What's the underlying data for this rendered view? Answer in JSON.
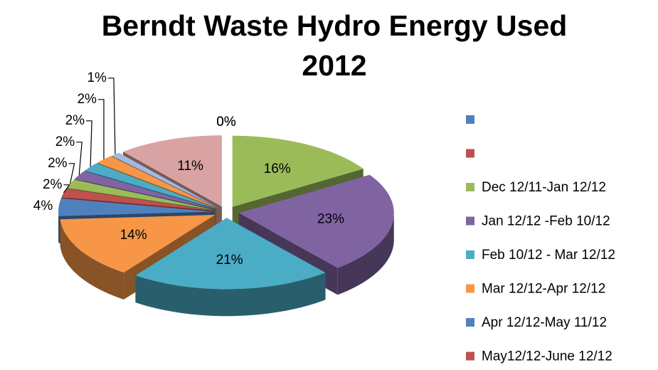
{
  "chart_data": {
    "type": "pie",
    "title": "Berndt Waste Hydro Energy Used 2012",
    "categories": [
      null,
      null,
      "Dec 12/11-Jan 12/12",
      "Jan 12/12 -Feb 10/12",
      "Feb 10/12 - Mar 12/12",
      "Mar 12/12-Apr 12/12",
      "Apr 12/12-May 11/12",
      "May12/12-June 12/12",
      null,
      null,
      null,
      null,
      null,
      null
    ],
    "values": [
      0,
      0,
      16,
      23,
      21,
      14,
      4,
      2,
      2,
      2,
      2,
      2,
      1,
      11
    ],
    "value_labels": [
      "0%",
      "0%",
      "16%",
      "23%",
      "21%",
      "14%",
      "4%",
      "2%",
      "2%",
      "2%",
      "2%",
      "2%",
      "1%",
      "11%"
    ],
    "colors": [
      "#4f81bd",
      "#c0504d",
      "#9bbb59",
      "#8064a2",
      "#4bacc6",
      "#f79646",
      "#4f81bd",
      "#c0504d",
      "#9bbb59",
      "#8064a2",
      "#4bacc6",
      "#f79646",
      "#a5b9dc",
      "#d9a3a3"
    ],
    "legend": "right"
  }
}
